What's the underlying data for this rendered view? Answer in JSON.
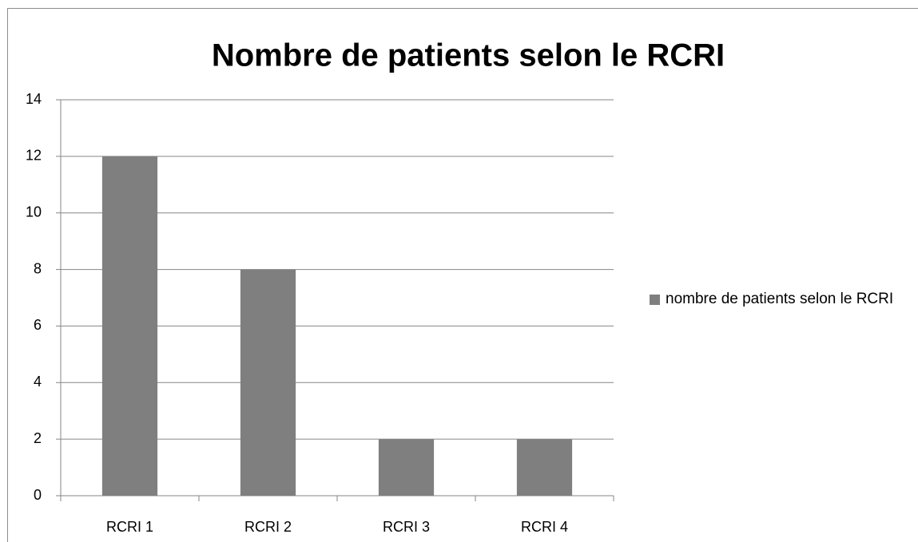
{
  "chart_data": {
    "type": "bar",
    "title": "Nombre de patients selon le RCRI",
    "categories": [
      "RCRI 1",
      "RCRI 2",
      "RCRI 3",
      "RCRI 4"
    ],
    "series": [
      {
        "name": "nombre de patients selon le RCRI",
        "color": "#7f7f7f",
        "values": [
          12,
          8,
          2,
          2
        ]
      }
    ],
    "ylim": [
      0,
      14
    ],
    "yticks": [
      0,
      2,
      4,
      6,
      8,
      10,
      12,
      14
    ],
    "grid": true,
    "legend": "right"
  }
}
